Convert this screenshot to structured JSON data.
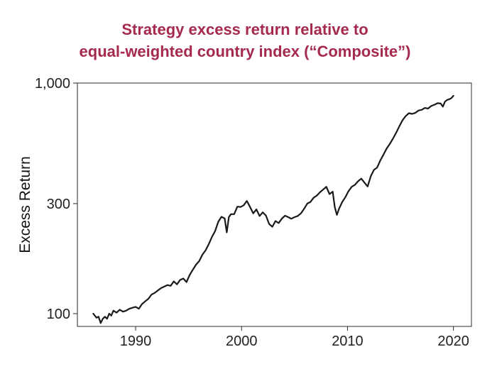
{
  "chart_data": {
    "type": "line",
    "title_lines": [
      "Strategy excess return relative to",
      "equal-weighted country index (“Composite”)"
    ],
    "xlabel": "",
    "ylabel": "Excess Return",
    "y_scale": "log",
    "xlim": [
      1984.5,
      2021.7
    ],
    "ylim": [
      88,
      1000
    ],
    "x_ticks": [
      1990,
      2000,
      2010,
      2020
    ],
    "x_tick_labels": [
      "1990",
      "2000",
      "2010",
      "2020"
    ],
    "y_ticks": [
      100,
      300,
      1000
    ],
    "y_tick_labels": [
      "100",
      "300",
      "1,000"
    ],
    "grid": false,
    "line_color": "#1a1a1a",
    "series": [
      {
        "x": [
          1986.0,
          1986.3,
          1986.5,
          1986.7,
          1986.9,
          1987.1,
          1987.3,
          1987.5,
          1987.7,
          1987.9,
          1988.2,
          1988.5,
          1988.8,
          1989.1,
          1989.4,
          1989.7,
          1990.0,
          1990.3,
          1990.6,
          1990.9,
          1991.2,
          1991.5,
          1991.8,
          1992.1,
          1992.4,
          1992.7,
          1993.0,
          1993.3,
          1993.6,
          1993.9,
          1994.2,
          1994.5,
          1994.8,
          1995.1,
          1995.4,
          1995.7,
          1996.0,
          1996.3,
          1996.6,
          1996.9,
          1997.2,
          1997.5,
          1997.8,
          1998.1,
          1998.4,
          1998.6,
          1998.8,
          1999.0,
          1999.3,
          1999.6,
          1999.9,
          2000.2,
          2000.5,
          2000.8,
          2001.1,
          2001.4,
          2001.7,
          2002.0,
          2002.3,
          2002.6,
          2002.9,
          2003.2,
          2003.5,
          2003.8,
          2004.1,
          2004.4,
          2004.7,
          2005.0,
          2005.3,
          2005.6,
          2005.9,
          2006.2,
          2006.5,
          2006.8,
          2007.1,
          2007.4,
          2007.7,
          2008.0,
          2008.3,
          2008.6,
          2008.8,
          2009.0,
          2009.2,
          2009.5,
          2009.8,
          2010.1,
          2010.4,
          2010.7,
          2011.0,
          2011.3,
          2011.6,
          2011.9,
          2012.2,
          2012.5,
          2012.8,
          2013.1,
          2013.4,
          2013.7,
          2014.0,
          2014.3,
          2014.6,
          2014.9,
          2015.2,
          2015.5,
          2015.8,
          2016.1,
          2016.4,
          2016.7,
          2017.0,
          2017.3,
          2017.6,
          2017.9,
          2018.2,
          2018.5,
          2018.8,
          2019.0,
          2019.2,
          2019.4,
          2019.6,
          2019.8,
          2020.0
        ],
        "y": [
          100,
          96,
          97,
          91,
          95,
          97,
          95,
          100,
          98,
          103,
          101,
          104,
          102,
          103,
          105,
          106,
          107,
          105,
          110,
          113,
          116,
          121,
          123,
          126,
          129,
          131,
          133,
          132,
          138,
          134,
          140,
          142,
          137,
          147,
          155,
          163,
          169,
          180,
          188,
          200,
          215,
          228,
          250,
          263,
          259,
          225,
          262,
          270,
          270,
          291,
          290,
          295,
          308,
          290,
          272,
          283,
          265,
          275,
          266,
          245,
          238,
          252,
          247,
          258,
          266,
          262,
          258,
          262,
          265,
          272,
          285,
          300,
          305,
          318,
          325,
          336,
          345,
          355,
          330,
          338,
          290,
          268,
          285,
          305,
          320,
          340,
          355,
          362,
          375,
          385,
          370,
          356,
          395,
          420,
          430,
          462,
          490,
          520,
          545,
          575,
          610,
          650,
          690,
          720,
          740,
          735,
          742,
          760,
          765,
          780,
          775,
          795,
          805,
          818,
          815,
          790,
          830,
          845,
          850,
          860,
          880
        ]
      }
    ]
  }
}
